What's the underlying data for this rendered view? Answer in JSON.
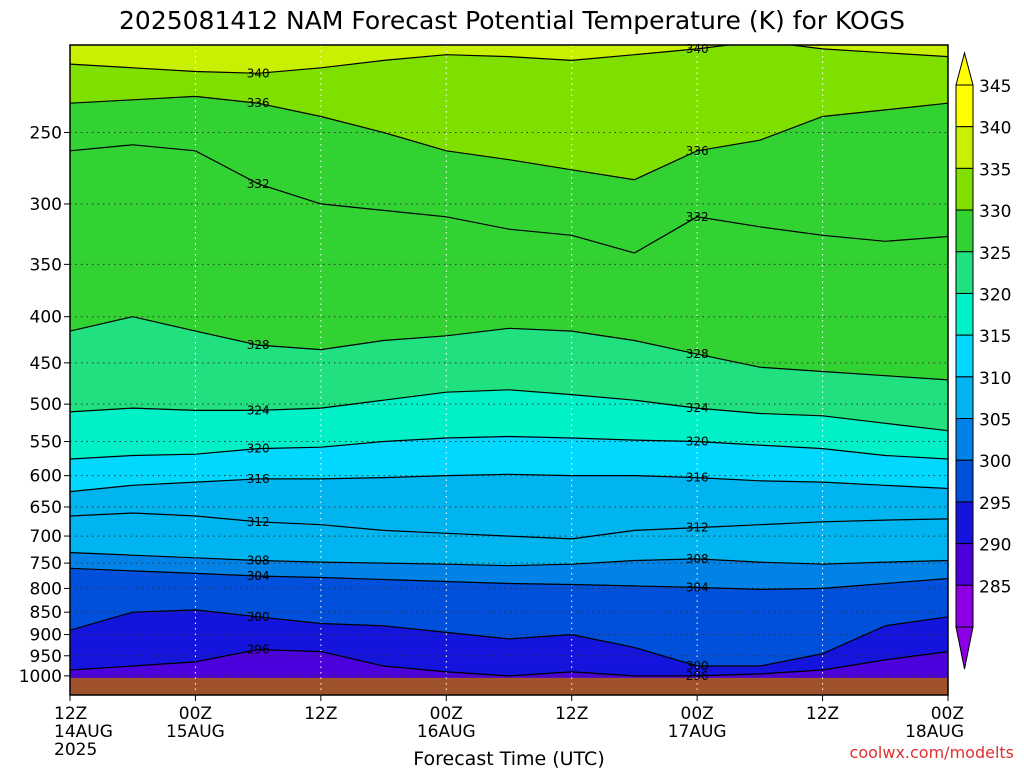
{
  "chart_data": {
    "type": "heatmap",
    "title": "2025081412 NAM Forecast Potential Temperature (K) for KOGS",
    "xlabel": "Forecast Time (UTC)",
    "ylabel": "",
    "credit": "coolwx.com/modelts",
    "x_range_hours": [
      0,
      84
    ],
    "y_range_hPa": [
      1050,
      200
    ],
    "y_scale": "log",
    "grid": true,
    "x_ticks": [
      {
        "hour": 0,
        "time": "12Z",
        "date": "14AUG",
        "year": "2025"
      },
      {
        "hour": 12,
        "time": "00Z",
        "date": "15AUG",
        "year": ""
      },
      {
        "hour": 24,
        "time": "12Z",
        "date": "",
        "year": ""
      },
      {
        "hour": 36,
        "time": "00Z",
        "date": "16AUG",
        "year": ""
      },
      {
        "hour": 48,
        "time": "12Z",
        "date": "",
        "year": ""
      },
      {
        "hour": 60,
        "time": "00Z",
        "date": "17AUG",
        "year": ""
      },
      {
        "hour": 72,
        "time": "12Z",
        "date": "",
        "year": ""
      },
      {
        "hour": 84,
        "time": "00Z",
        "date": "18AUG",
        "year": ""
      }
    ],
    "y_ticks": [
      "250",
      "300",
      "350",
      "400",
      "450",
      "500",
      "550",
      "600",
      "650",
      "700",
      "750",
      "800",
      "850",
      "900",
      "950",
      "1000"
    ],
    "colorbar": {
      "levels": [
        "345",
        "340",
        "335",
        "330",
        "325",
        "320",
        "315",
        "310",
        "305",
        "300",
        "295",
        "290",
        "285"
      ],
      "colors": [
        "#ffff00",
        "#c8f000",
        "#7fe000",
        "#32d232",
        "#20e080",
        "#00f0c8",
        "#00d8ff",
        "#00b4f0",
        "#0082e6",
        "#0050dc",
        "#1414dc",
        "#4b00dc",
        "#8c00e6"
      ]
    },
    "series": [
      {
        "theta": 340,
        "label": "340",
        "p": [
          210,
          212,
          214,
          215,
          212,
          208,
          205,
          206,
          208,
          205,
          202,
          198,
          202,
          204,
          206
        ]
      },
      {
        "theta": 336,
        "label": "336",
        "p": [
          232,
          230,
          228,
          232,
          240,
          250,
          262,
          268,
          275,
          282,
          262,
          255,
          240,
          236,
          232
        ]
      },
      {
        "theta": 332,
        "label": "332",
        "p": [
          262,
          258,
          262,
          285,
          300,
          305,
          310,
          320,
          325,
          340,
          310,
          318,
          325,
          330,
          326
        ]
      },
      {
        "theta": 328,
        "label": "328",
        "p": [
          415,
          400,
          415,
          430,
          435,
          425,
          420,
          412,
          415,
          425,
          440,
          455,
          460,
          465,
          470
        ]
      },
      {
        "theta": 324,
        "label": "324",
        "p": [
          510,
          505,
          508,
          508,
          505,
          495,
          485,
          482,
          488,
          495,
          505,
          512,
          515,
          525,
          535
        ]
      },
      {
        "theta": 320,
        "label": "320",
        "p": [
          575,
          570,
          568,
          560,
          558,
          550,
          545,
          543,
          545,
          548,
          550,
          555,
          560,
          570,
          575
        ]
      },
      {
        "theta": 316,
        "label": "316",
        "p": [
          625,
          615,
          610,
          605,
          605,
          603,
          600,
          598,
          600,
          600,
          603,
          608,
          610,
          615,
          620
        ]
      },
      {
        "theta": 312,
        "label": "312",
        "p": [
          665,
          660,
          665,
          675,
          680,
          690,
          695,
          700,
          705,
          690,
          685,
          680,
          675,
          672,
          670
        ]
      },
      {
        "theta": 308,
        "label": "308",
        "p": [
          730,
          735,
          740,
          745,
          748,
          750,
          752,
          755,
          752,
          745,
          742,
          748,
          752,
          748,
          745
        ]
      },
      {
        "theta": 304,
        "label": "304",
        "p": [
          760,
          765,
          770,
          775,
          778,
          782,
          786,
          790,
          792,
          795,
          798,
          802,
          800,
          790,
          780
        ]
      },
      {
        "theta": 300,
        "label": "300",
        "p": [
          890,
          850,
          845,
          860,
          875,
          880,
          895,
          910,
          900,
          930,
          975,
          975,
          945,
          880,
          860
        ]
      },
      {
        "theta": 296,
        "label": "296",
        "p": [
          985,
          975,
          965,
          935,
          940,
          975,
          990,
          1000,
          990,
          1000,
          1000,
          995,
          985,
          960,
          940
        ]
      }
    ]
  }
}
